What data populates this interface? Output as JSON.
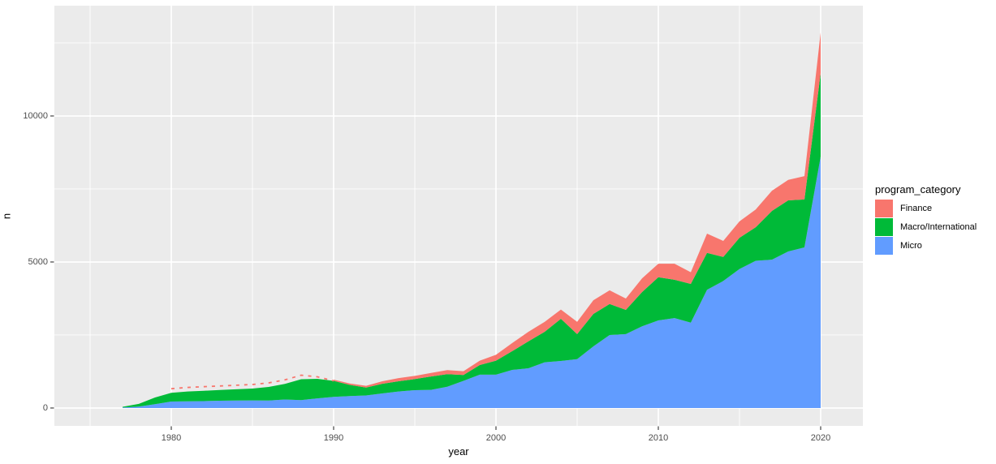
{
  "page": {
    "background": "#FFFFFF"
  },
  "chart_data": {
    "type": "area",
    "stacked": true,
    "title": "",
    "xlabel": "year",
    "ylabel": "n",
    "x": [
      1977,
      1978,
      1979,
      1980,
      1981,
      1982,
      1983,
      1984,
      1985,
      1986,
      1987,
      1988,
      1989,
      1990,
      1991,
      1992,
      1993,
      1994,
      1995,
      1996,
      1997,
      1998,
      1999,
      2000,
      2001,
      2002,
      2003,
      2004,
      2005,
      2006,
      2007,
      2008,
      2009,
      2010,
      2011,
      2012,
      2013,
      2014,
      2015,
      2016,
      2017,
      2018,
      2019,
      2020
    ],
    "series": [
      {
        "name": "Micro",
        "color": "#619CFF",
        "values": [
          15,
          45,
          130,
          220,
          230,
          235,
          250,
          255,
          260,
          255,
          290,
          270,
          330,
          380,
          410,
          430,
          500,
          565,
          610,
          620,
          730,
          930,
          1140,
          1140,
          1305,
          1360,
          1565,
          1610,
          1670,
          2110,
          2500,
          2530,
          2800,
          3000,
          3080,
          2920,
          4050,
          4350,
          4760,
          5040,
          5080,
          5360,
          5500,
          8610
        ]
      },
      {
        "name": "Macro/International",
        "color": "#00BA38",
        "values": [
          25,
          95,
          230,
          300,
          335,
          355,
          365,
          385,
          405,
          465,
          535,
          715,
          670,
          550,
          380,
          270,
          330,
          350,
          380,
          460,
          430,
          200,
          330,
          480,
          640,
          925,
          1045,
          1445,
          860,
          1110,
          1060,
          830,
          1170,
          1480,
          1310,
          1330,
          1260,
          820,
          1070,
          1150,
          1670,
          1750,
          1640,
          2860
        ]
      },
      {
        "name": "Finance",
        "color": "#F8766D",
        "sparse_dashed_until": 1990,
        "values": [
          0,
          0,
          0,
          15,
          15,
          20,
          20,
          25,
          25,
          30,
          35,
          35,
          40,
          40,
          50,
          60,
          85,
          110,
          110,
          120,
          135,
          130,
          150,
          200,
          280,
          325,
          340,
          315,
          420,
          470,
          470,
          390,
          470,
          460,
          550,
          400,
          660,
          550,
          560,
          610,
          690,
          700,
          800,
          1390
        ]
      }
    ],
    "legend": {
      "position": "right",
      "title": "program_category",
      "entries": [
        {
          "label": "Finance",
          "color": "#F8766D"
        },
        {
          "label": "Macro/International",
          "color": "#00BA38"
        },
        {
          "label": "Micro",
          "color": "#619CFF"
        }
      ]
    },
    "axes": {
      "x_ticks": [
        1980,
        1990,
        2000,
        2010,
        2020
      ],
      "x_minor_ticks": [
        1975,
        1985,
        1995,
        2005,
        2015
      ],
      "y_ticks": [
        0,
        5000,
        10000
      ],
      "y_minor_ticks": [
        2500,
        7500,
        12500
      ],
      "xlim": [
        1972.8,
        2022.6
      ],
      "ylim": [
        -612,
        13777
      ],
      "grid": true
    },
    "style": {
      "panel_bg": "#EBEBEB",
      "grid_color": "#FFFFFF",
      "tick_text_color": "#4D4D4D",
      "axis_title_color": "#000000",
      "tick_mark_color": "#333333"
    }
  }
}
